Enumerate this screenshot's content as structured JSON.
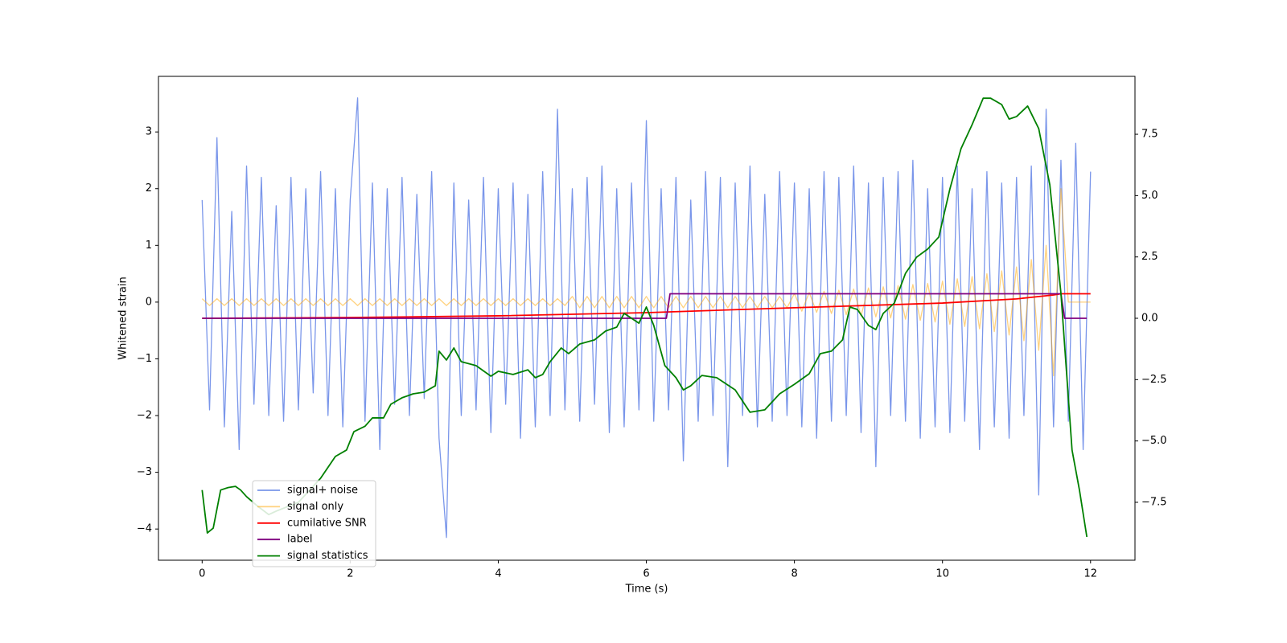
{
  "chart_data": {
    "type": "line",
    "xlabel": "Time (s)",
    "ylabel": "Whitened strain",
    "xlim": [
      -0.59,
      12.6
    ],
    "xticks": [
      0,
      2,
      4,
      6,
      8,
      10,
      12
    ],
    "ylim": [
      -4.55,
      3.98
    ],
    "yticks": [
      {
        "value": -4,
        "label": "−4"
      },
      {
        "value": -3,
        "label": "−3"
      },
      {
        "value": -2,
        "label": "−2"
      },
      {
        "value": -1,
        "label": "−1"
      },
      0,
      1,
      2,
      3
    ],
    "y2lim": [
      -9.86,
      9.86
    ],
    "y2ticks": [
      {
        "value": -7.5,
        "label": "−7.5"
      },
      {
        "value": -5,
        "label": "−5.0"
      },
      {
        "value": -2.5,
        "label": "−2.5"
      },
      {
        "value": 0,
        "label": "0.0"
      },
      {
        "value": 2.5,
        "label": "2.5"
      },
      {
        "value": 5,
        "label": "5.0"
      },
      {
        "value": 7.5,
        "label": "7.5"
      }
    ],
    "legend_loc": "lower left",
    "x": [
      0,
      0.1,
      0.2,
      0.3,
      0.4,
      0.5,
      0.6,
      0.7,
      0.8,
      0.9,
      1,
      1.1,
      1.2,
      1.3,
      1.4,
      1.5,
      1.6,
      1.7,
      1.8,
      1.9,
      2,
      2.1,
      2.2,
      2.3,
      2.4,
      2.5,
      2.6,
      2.7,
      2.8,
      2.9,
      3,
      3.1,
      3.2,
      3.3,
      3.4,
      3.5,
      3.6,
      3.7,
      3.8,
      3.9,
      4,
      4.1,
      4.2,
      4.3,
      4.4,
      4.5,
      4.6,
      4.7,
      4.8,
      4.9,
      5,
      5.1,
      5.2,
      5.3,
      5.4,
      5.5,
      5.6,
      5.7,
      5.8,
      5.9,
      6,
      6.1,
      6.2,
      6.3,
      6.4,
      6.5,
      6.6,
      6.7,
      6.8,
      6.9,
      7,
      7.1,
      7.2,
      7.3,
      7.4,
      7.5,
      7.6,
      7.7,
      7.8,
      7.9,
      8,
      8.1,
      8.2,
      8.3,
      8.4,
      8.5,
      8.6,
      8.7,
      8.8,
      8.9,
      9,
      9.1,
      9.2,
      9.3,
      9.4,
      9.5,
      9.6,
      9.7,
      9.8,
      9.9,
      10,
      10.1,
      10.2,
      10.3,
      10.4,
      10.5,
      10.6,
      10.7,
      10.8,
      10.9,
      11,
      11.1,
      11.2,
      11.3,
      11.4,
      11.5,
      11.6,
      11.7,
      11.8,
      11.9,
      12
    ],
    "series": [
      {
        "name": "signal+ noise",
        "color": "#4169e1",
        "alpha": 0.7,
        "axis": "y",
        "values": [
          1.8,
          -1.9,
          2.9,
          -2.2,
          1.6,
          -2.6,
          2.4,
          -1.8,
          2.2,
          -2.0,
          1.7,
          -2.1,
          2.2,
          -1.9,
          2.0,
          -1.6,
          2.3,
          -2.0,
          2.0,
          -2.2,
          1.8,
          3.6,
          -2.1,
          2.1,
          -2.6,
          2.0,
          -1.8,
          2.2,
          -2.0,
          1.9,
          -1.7,
          2.3,
          -2.4,
          -4.15,
          2.1,
          -2.0,
          1.8,
          -1.9,
          2.2,
          -2.3,
          2.0,
          -1.8,
          2.1,
          -2.4,
          1.9,
          -2.2,
          2.3,
          -2.0,
          3.4,
          -1.9,
          2.0,
          -2.1,
          2.2,
          -1.8,
          2.4,
          -2.3,
          2.0,
          -2.2,
          2.1,
          -1.9,
          3.2,
          -2.1,
          2.0,
          -1.9,
          2.2,
          -2.8,
          1.8,
          -2.1,
          2.3,
          -2.0,
          2.2,
          -2.9,
          2.1,
          -2.0,
          2.4,
          -2.2,
          1.9,
          -2.1,
          2.3,
          -2.0,
          2.1,
          -2.2,
          2.0,
          -2.4,
          2.3,
          -2.1,
          2.2,
          -2.0,
          2.4,
          -2.3,
          2.1,
          -2.9,
          2.2,
          -2.0,
          2.3,
          -2.1,
          2.5,
          -2.4,
          2.0,
          -2.2,
          2.2,
          -2.3,
          2.4,
          -2.1,
          2.0,
          -2.6,
          2.3,
          -2.2,
          2.1,
          -2.4,
          2.2,
          -2.0,
          2.4,
          -3.4,
          3.4,
          -2.2,
          2.5,
          -2.1,
          2.8,
          -2.6,
          2.3
        ]
      },
      {
        "name": "signal only",
        "color": "orange",
        "alpha": 0.5,
        "axis": "y",
        "values": [
          0.06,
          -0.06,
          0.06,
          -0.06,
          0.06,
          -0.06,
          0.06,
          -0.06,
          0.06,
          -0.06,
          0.06,
          -0.06,
          0.06,
          -0.06,
          0.06,
          -0.06,
          0.06,
          -0.06,
          0.06,
          -0.06,
          0.06,
          -0.06,
          0.06,
          -0.06,
          0.06,
          -0.06,
          0.06,
          -0.06,
          0.06,
          -0.06,
          0.06,
          -0.06,
          0.06,
          -0.06,
          0.06,
          -0.06,
          0.06,
          -0.06,
          0.06,
          -0.06,
          0.06,
          -0.06,
          0.06,
          -0.06,
          0.06,
          -0.06,
          0.06,
          -0.06,
          0.06,
          -0.06,
          0.1,
          -0.1,
          0.1,
          -0.1,
          0.1,
          -0.1,
          0.1,
          -0.1,
          0.1,
          -0.1,
          0.1,
          -0.1,
          0.1,
          -0.1,
          0.1,
          -0.1,
          0.1,
          -0.1,
          0.1,
          -0.1,
          0.1,
          -0.1,
          0.1,
          -0.1,
          0.1,
          -0.1,
          0.1,
          -0.1,
          0.1,
          -0.1,
          0.15,
          -0.16,
          0.17,
          -0.18,
          0.19,
          -0.2,
          0.21,
          -0.22,
          0.23,
          -0.24,
          0.25,
          -0.26,
          0.27,
          -0.28,
          0.29,
          -0.3,
          0.31,
          -0.32,
          0.33,
          -0.35,
          0.37,
          -0.39,
          0.41,
          -0.43,
          0.45,
          -0.47,
          0.5,
          -0.52,
          0.55,
          -0.58,
          0.62,
          -0.68,
          0.75,
          -0.85,
          1.0,
          -1.3,
          2.0,
          0,
          0,
          0,
          0
        ]
      },
      {
        "name": "cumilative SNR",
        "color": "red",
        "axis": "y2",
        "x": [
          0,
          2,
          4,
          6,
          8,
          10,
          11,
          11.5,
          11.6,
          12
        ],
        "values": [
          0,
          0.03,
          0.1,
          0.23,
          0.43,
          0.62,
          0.79,
          0.95,
          1.0,
          1.0
        ]
      },
      {
        "name": "label",
        "color": "purple",
        "axis": "y2",
        "x": [
          0,
          6.27,
          6.32,
          11.6,
          11.65,
          11.95
        ],
        "values": [
          0,
          0,
          1,
          1,
          0,
          0
        ]
      },
      {
        "name": "signal statistics",
        "color": "green",
        "axis": "y2",
        "x": [
          0,
          0.07,
          0.15,
          0.25,
          0.35,
          0.45,
          0.52,
          0.6,
          0.75,
          0.9,
          1.0,
          1.3,
          1.6,
          1.8,
          1.95,
          2.05,
          2.2,
          2.3,
          2.45,
          2.55,
          2.7,
          2.85,
          3.0,
          3.15,
          3.2,
          3.3,
          3.4,
          3.5,
          3.7,
          3.9,
          4.0,
          4.2,
          4.4,
          4.5,
          4.6,
          4.7,
          4.85,
          4.95,
          5.1,
          5.3,
          5.45,
          5.6,
          5.7,
          5.9,
          6.0,
          6.1,
          6.25,
          6.4,
          6.5,
          6.6,
          6.75,
          6.95,
          7.2,
          7.4,
          7.6,
          7.8,
          8.0,
          8.2,
          8.35,
          8.5,
          8.65,
          8.75,
          8.85,
          9.0,
          9.1,
          9.2,
          9.35,
          9.5,
          9.65,
          9.8,
          9.95,
          10.1,
          10.25,
          10.4,
          10.55,
          10.65,
          10.8,
          10.9,
          11.0,
          11.15,
          11.3,
          11.45,
          11.6,
          11.75,
          11.85,
          11.95
        ],
        "values": [
          -7.0,
          -8.75,
          -8.55,
          -7.0,
          -6.9,
          -6.85,
          -7.0,
          -7.27,
          -7.66,
          -8.0,
          -7.86,
          -7.5,
          -6.52,
          -5.63,
          -5.37,
          -4.62,
          -4.4,
          -4.06,
          -4.06,
          -3.5,
          -3.24,
          -3.08,
          -3.01,
          -2.75,
          -1.34,
          -1.7,
          -1.21,
          -1.77,
          -1.93,
          -2.36,
          -2.16,
          -2.29,
          -2.1,
          -2.42,
          -2.29,
          -1.77,
          -1.21,
          -1.44,
          -1.05,
          -0.88,
          -0.52,
          -0.36,
          0.2,
          -0.2,
          0.46,
          -0.29,
          -1.93,
          -2.42,
          -2.92,
          -2.75,
          -2.33,
          -2.42,
          -2.92,
          -3.83,
          -3.73,
          -3.08,
          -2.69,
          -2.26,
          -1.44,
          -1.34,
          -0.88,
          0.46,
          0.36,
          -0.29,
          -0.46,
          0.2,
          0.62,
          1.83,
          2.49,
          2.82,
          3.31,
          5.27,
          6.91,
          7.89,
          8.97,
          8.97,
          8.71,
          8.12,
          8.22,
          8.65,
          7.73,
          5.44,
          1.02,
          -5.37,
          -7.0,
          -8.91
        ]
      }
    ]
  }
}
